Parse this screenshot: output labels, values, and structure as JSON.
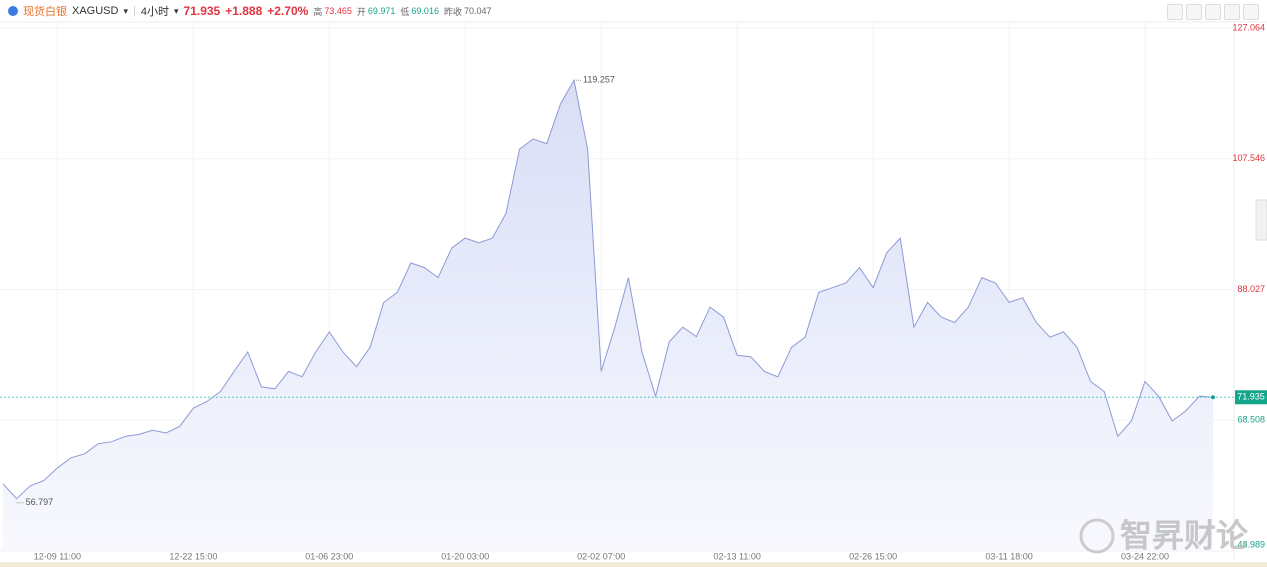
{
  "chart_data": {
    "type": "area",
    "quote": {
      "name": "现货白银",
      "symbol": "XAGUSD",
      "interval": "4小时",
      "price": 71.935,
      "change": "+1.888",
      "change_pct": "+2.70%",
      "high_label": "高",
      "high": 73.465,
      "open_label": "开",
      "open": 69.971,
      "low_label": "低",
      "low": 69.016,
      "prev_label": "昨收",
      "prev": 70.047
    },
    "categories": [
      null,
      null,
      null,
      null,
      "12-09 11:00",
      null,
      null,
      null,
      null,
      null,
      null,
      null,
      null,
      null,
      "12-22 15:00",
      null,
      null,
      null,
      null,
      null,
      null,
      null,
      null,
      null,
      "01-06 23:00",
      null,
      null,
      null,
      null,
      null,
      null,
      null,
      null,
      null,
      "01-20 03:00",
      null,
      null,
      null,
      null,
      null,
      null,
      null,
      null,
      null,
      "02-02 07:00",
      null,
      null,
      null,
      null,
      null,
      null,
      null,
      null,
      null,
      "02-13 11:00",
      null,
      null,
      null,
      null,
      null,
      null,
      null,
      null,
      null,
      "02-26 15:00",
      null,
      null,
      null,
      null,
      null,
      null,
      null,
      null,
      null,
      "03-11 18:00",
      null,
      null,
      null,
      null,
      null,
      null,
      null,
      null,
      null,
      "03-24 22:00",
      null,
      null,
      null,
      null,
      null
    ],
    "series": [
      {
        "name": "XAGUSD",
        "color": "#8e9ad6",
        "values": [
          59.0,
          56.8,
          58.7,
          59.5,
          61.4,
          62.9,
          63.5,
          65.0,
          65.3,
          66.1,
          66.4,
          67.0,
          66.6,
          67.6,
          70.3,
          71.3,
          72.8,
          75.8,
          78.7,
          73.5,
          73.2,
          75.8,
          75.0,
          78.7,
          81.7,
          78.7,
          76.5,
          79.4,
          86.1,
          87.6,
          92.0,
          91.3,
          89.8,
          94.2,
          95.7,
          95.0,
          95.7,
          99.4,
          109.0,
          110.5,
          109.8,
          115.7,
          119.257,
          109.0,
          75.8,
          82.4,
          89.8,
          78.7,
          72.1,
          80.2,
          82.4,
          81.0,
          85.4,
          83.9,
          78.2,
          78.0,
          75.8,
          75.0,
          79.4,
          80.9,
          87.6,
          88.3,
          89.0,
          91.3,
          88.3,
          93.5,
          95.7,
          82.4,
          86.1,
          83.9,
          83.1,
          85.4,
          89.8,
          89.0,
          86.1,
          86.8,
          83.1,
          80.9,
          81.7,
          79.4,
          74.3,
          72.8,
          66.1,
          68.4,
          74.3,
          72.1,
          68.4,
          69.9,
          72.1,
          71.935
        ]
      }
    ],
    "high_marker": 119.257,
    "low_marker": 56.797,
    "ylim": [
      48.989,
      127.064
    ],
    "yticks": [
      48.989,
      68.508,
      88.027,
      107.546,
      127.064
    ],
    "grid": true,
    "watermark": "智昇财论"
  }
}
